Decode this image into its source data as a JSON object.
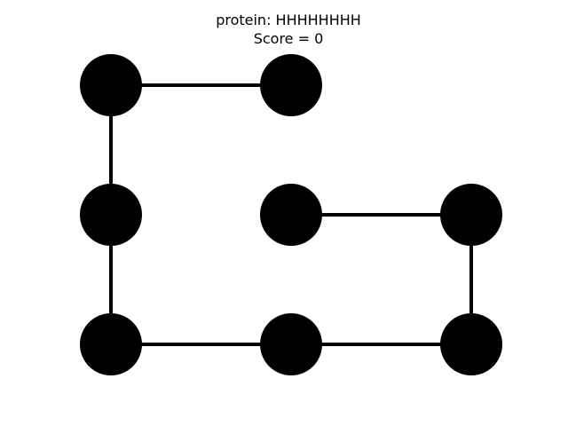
{
  "title": {
    "protein": "protein: HHHHHHHH",
    "score": "Score = 0"
  },
  "protein": {
    "sequence": "HHHHHHHH",
    "score": 0,
    "residue_type": "H",
    "residue_color": "#000000",
    "bond_color": "#000000",
    "chain": [
      {
        "x": 1,
        "y": 0
      },
      {
        "x": 0,
        "y": 0
      },
      {
        "x": 0,
        "y": 1
      },
      {
        "x": 0,
        "y": 2
      },
      {
        "x": 1,
        "y": 2
      },
      {
        "x": 2,
        "y": 2
      },
      {
        "x": 2,
        "y": 1
      },
      {
        "x": 1,
        "y": 1
      }
    ]
  }
}
